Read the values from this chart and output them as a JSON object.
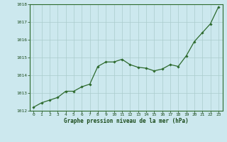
{
  "x": [
    0,
    1,
    2,
    3,
    4,
    5,
    6,
    7,
    8,
    9,
    10,
    11,
    12,
    13,
    14,
    15,
    16,
    17,
    18,
    19,
    20,
    21,
    22,
    23
  ],
  "y": [
    1012.2,
    1012.45,
    1012.6,
    1012.75,
    1013.1,
    1013.1,
    1013.35,
    1013.5,
    1014.5,
    1014.75,
    1014.75,
    1014.9,
    1014.6,
    1014.45,
    1014.4,
    1014.25,
    1014.35,
    1014.6,
    1014.5,
    1015.1,
    1015.9,
    1016.4,
    1016.9,
    1017.85
  ],
  "line_color": "#2d6a2d",
  "marker": "D",
  "marker_size": 1.8,
  "bg_color": "#cce8ee",
  "grid_color": "#aacccc",
  "xlabel": "Graphe pression niveau de la mer (hPa)",
  "xlabel_color": "#1a4a1a",
  "tick_color": "#1a4a1a",
  "ylim": [
    1012,
    1018
  ],
  "yticks": [
    1012,
    1013,
    1014,
    1015,
    1016,
    1017,
    1018
  ],
  "xticks": [
    0,
    1,
    2,
    3,
    4,
    5,
    6,
    7,
    8,
    9,
    10,
    11,
    12,
    13,
    14,
    15,
    16,
    17,
    18,
    19,
    20,
    21,
    22,
    23
  ],
  "border_color": "#2d6a2d",
  "spine_color": "#2d6a2d"
}
